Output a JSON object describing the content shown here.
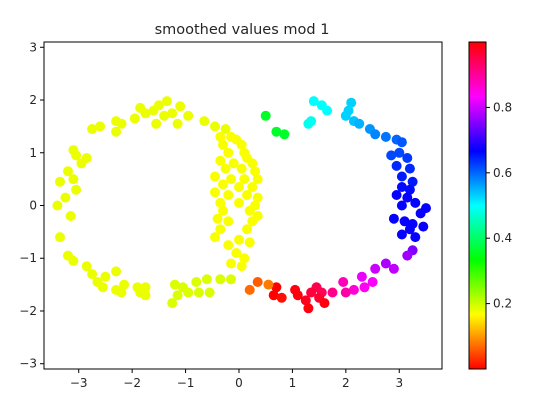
{
  "chart_data": {
    "type": "scatter",
    "title": "smoothed values mod 1",
    "xlabel": "",
    "ylabel": "",
    "xlim": [
      -3.65,
      3.8
    ],
    "ylim": [
      -3.1,
      3.1
    ],
    "xticks": [
      -3,
      -2,
      -1,
      0,
      1,
      2,
      3
    ],
    "yticks": [
      -3,
      -2,
      -1,
      0,
      1,
      2,
      3
    ],
    "grid": false,
    "colormap": "hsv",
    "colorbar": {
      "range": [
        0.0,
        1.0
      ],
      "ticks": [
        0.2,
        0.4,
        0.6,
        0.8
      ],
      "tick_labels": [
        "0.2",
        "0.4",
        "0.6",
        "0.8"
      ]
    },
    "points": [
      {
        "x": -1.35,
        "y": 1.98,
        "v": 0.18
      },
      {
        "x": -1.5,
        "y": 1.9,
        "v": 0.18
      },
      {
        "x": -1.1,
        "y": 1.88,
        "v": 0.18
      },
      {
        "x": -1.6,
        "y": 1.8,
        "v": 0.18
      },
      {
        "x": -1.85,
        "y": 1.85,
        "v": 0.18
      },
      {
        "x": -1.75,
        "y": 1.75,
        "v": 0.18
      },
      {
        "x": -1.25,
        "y": 1.75,
        "v": 0.18
      },
      {
        "x": -1.4,
        "y": 1.7,
        "v": 0.18
      },
      {
        "x": -0.95,
        "y": 1.7,
        "v": 0.18
      },
      {
        "x": -1.95,
        "y": 1.65,
        "v": 0.18
      },
      {
        "x": -2.3,
        "y": 1.6,
        "v": 0.18
      },
      {
        "x": -2.2,
        "y": 1.55,
        "v": 0.18
      },
      {
        "x": -1.55,
        "y": 1.55,
        "v": 0.18
      },
      {
        "x": -1.15,
        "y": 1.55,
        "v": 0.18
      },
      {
        "x": -0.65,
        "y": 1.6,
        "v": 0.18
      },
      {
        "x": -2.6,
        "y": 1.5,
        "v": 0.18
      },
      {
        "x": -2.75,
        "y": 1.45,
        "v": 0.18
      },
      {
        "x": -0.45,
        "y": 1.5,
        "v": 0.18
      },
      {
        "x": -2.3,
        "y": 1.4,
        "v": 0.18
      },
      {
        "x": -0.25,
        "y": 1.45,
        "v": 0.18
      },
      {
        "x": -3.1,
        "y": 1.05,
        "v": 0.18
      },
      {
        "x": -3.05,
        "y": 0.95,
        "v": 0.18
      },
      {
        "x": -2.85,
        "y": 0.9,
        "v": 0.18
      },
      {
        "x": -2.95,
        "y": 0.8,
        "v": 0.18
      },
      {
        "x": -3.2,
        "y": 0.65,
        "v": 0.18
      },
      {
        "x": -3.35,
        "y": 0.45,
        "v": 0.18
      },
      {
        "x": -3.1,
        "y": 0.5,
        "v": 0.18
      },
      {
        "x": -3.05,
        "y": 0.3,
        "v": 0.18
      },
      {
        "x": -3.25,
        "y": 0.15,
        "v": 0.18
      },
      {
        "x": -3.4,
        "y": 0.0,
        "v": 0.18
      },
      {
        "x": -3.15,
        "y": -0.2,
        "v": 0.18
      },
      {
        "x": -3.35,
        "y": -0.6,
        "v": 0.18
      },
      {
        "x": -3.2,
        "y": -0.95,
        "v": 0.18
      },
      {
        "x": -3.1,
        "y": -1.05,
        "v": 0.18
      },
      {
        "x": -2.85,
        "y": -1.15,
        "v": 0.18
      },
      {
        "x": -2.75,
        "y": -1.3,
        "v": 0.18
      },
      {
        "x": -2.65,
        "y": -1.45,
        "v": 0.18
      },
      {
        "x": -2.5,
        "y": -1.35,
        "v": 0.18
      },
      {
        "x": -2.3,
        "y": -1.25,
        "v": 0.18
      },
      {
        "x": -2.55,
        "y": -1.55,
        "v": 0.18
      },
      {
        "x": -2.3,
        "y": -1.6,
        "v": 0.18
      },
      {
        "x": -2.15,
        "y": -1.5,
        "v": 0.18
      },
      {
        "x": -2.2,
        "y": -1.65,
        "v": 0.18
      },
      {
        "x": -1.9,
        "y": -1.55,
        "v": 0.18
      },
      {
        "x": -1.85,
        "y": -1.65,
        "v": 0.18
      },
      {
        "x": -1.75,
        "y": -1.7,
        "v": 0.18
      },
      {
        "x": -1.75,
        "y": -1.55,
        "v": 0.18
      },
      {
        "x": -1.2,
        "y": -1.5,
        "v": 0.19
      },
      {
        "x": -1.05,
        "y": -1.55,
        "v": 0.19
      },
      {
        "x": -0.8,
        "y": -1.45,
        "v": 0.19
      },
      {
        "x": -0.6,
        "y": -1.4,
        "v": 0.19
      },
      {
        "x": -0.35,
        "y": -1.4,
        "v": 0.19
      },
      {
        "x": -0.15,
        "y": -1.4,
        "v": 0.19
      },
      {
        "x": -0.95,
        "y": -1.65,
        "v": 0.19
      },
      {
        "x": -0.75,
        "y": -1.65,
        "v": 0.19
      },
      {
        "x": -0.55,
        "y": -1.65,
        "v": 0.19
      },
      {
        "x": -1.15,
        "y": -1.7,
        "v": 0.19
      },
      {
        "x": -1.25,
        "y": -1.85,
        "v": 0.19
      },
      {
        "x": -0.35,
        "y": 1.3,
        "v": 0.17
      },
      {
        "x": -0.15,
        "y": 1.3,
        "v": 0.17
      },
      {
        "x": -0.05,
        "y": 1.25,
        "v": 0.17
      },
      {
        "x": -0.3,
        "y": 1.15,
        "v": 0.17
      },
      {
        "x": 0.05,
        "y": 1.15,
        "v": 0.17
      },
      {
        "x": -0.2,
        "y": 1.0,
        "v": 0.17
      },
      {
        "x": 0.1,
        "y": 1.0,
        "v": 0.17
      },
      {
        "x": 0.15,
        "y": 0.9,
        "v": 0.17
      },
      {
        "x": -0.35,
        "y": 0.85,
        "v": 0.17
      },
      {
        "x": -0.1,
        "y": 0.8,
        "v": 0.17
      },
      {
        "x": 0.25,
        "y": 0.8,
        "v": 0.17
      },
      {
        "x": -0.25,
        "y": 0.7,
        "v": 0.17
      },
      {
        "x": 0.05,
        "y": 0.7,
        "v": 0.17
      },
      {
        "x": 0.3,
        "y": 0.65,
        "v": 0.17
      },
      {
        "x": -0.45,
        "y": 0.55,
        "v": 0.17
      },
      {
        "x": -0.15,
        "y": 0.5,
        "v": 0.17
      },
      {
        "x": 0.1,
        "y": 0.5,
        "v": 0.17
      },
      {
        "x": 0.35,
        "y": 0.5,
        "v": 0.17
      },
      {
        "x": -0.3,
        "y": 0.4,
        "v": 0.17
      },
      {
        "x": 0.0,
        "y": 0.35,
        "v": 0.17
      },
      {
        "x": 0.25,
        "y": 0.35,
        "v": 0.17
      },
      {
        "x": -0.45,
        "y": 0.25,
        "v": 0.17
      },
      {
        "x": -0.2,
        "y": 0.2,
        "v": 0.17
      },
      {
        "x": 0.15,
        "y": 0.2,
        "v": 0.17
      },
      {
        "x": 0.35,
        "y": 0.15,
        "v": 0.17
      },
      {
        "x": -0.35,
        "y": 0.05,
        "v": 0.17
      },
      {
        "x": 0.0,
        "y": 0.05,
        "v": 0.17
      },
      {
        "x": 0.3,
        "y": 0.0,
        "v": 0.17
      },
      {
        "x": -0.3,
        "y": -0.1,
        "v": 0.17
      },
      {
        "x": 0.2,
        "y": -0.1,
        "v": 0.17
      },
      {
        "x": -0.4,
        "y": -0.25,
        "v": 0.17
      },
      {
        "x": 0.35,
        "y": -0.2,
        "v": 0.17
      },
      {
        "x": -0.2,
        "y": -0.3,
        "v": 0.17
      },
      {
        "x": 0.25,
        "y": -0.3,
        "v": 0.17
      },
      {
        "x": -0.35,
        "y": -0.45,
        "v": 0.17
      },
      {
        "x": 0.15,
        "y": -0.45,
        "v": 0.17
      },
      {
        "x": -0.45,
        "y": -0.6,
        "v": 0.17
      },
      {
        "x": 0.0,
        "y": -0.65,
        "v": 0.17
      },
      {
        "x": -0.2,
        "y": -0.75,
        "v": 0.17
      },
      {
        "x": 0.2,
        "y": -0.7,
        "v": 0.17
      },
      {
        "x": -0.05,
        "y": -0.9,
        "v": 0.17
      },
      {
        "x": 0.1,
        "y": -1.0,
        "v": 0.17
      },
      {
        "x": -0.15,
        "y": -1.1,
        "v": 0.17
      },
      {
        "x": 0.05,
        "y": -1.15,
        "v": 0.17
      },
      {
        "x": 0.5,
        "y": 1.7,
        "v": 0.36
      },
      {
        "x": 0.7,
        "y": 1.4,
        "v": 0.36
      },
      {
        "x": 0.85,
        "y": 1.35,
        "v": 0.36
      },
      {
        "x": 1.4,
        "y": 1.98,
        "v": 0.5
      },
      {
        "x": 1.55,
        "y": 1.9,
        "v": 0.5
      },
      {
        "x": 1.65,
        "y": 1.8,
        "v": 0.5
      },
      {
        "x": 1.35,
        "y": 1.6,
        "v": 0.49
      },
      {
        "x": 1.3,
        "y": 1.55,
        "v": 0.49
      },
      {
        "x": 2.1,
        "y": 1.95,
        "v": 0.53
      },
      {
        "x": 2.05,
        "y": 1.8,
        "v": 0.53
      },
      {
        "x": 2.0,
        "y": 1.7,
        "v": 0.53
      },
      {
        "x": 2.15,
        "y": 1.6,
        "v": 0.54
      },
      {
        "x": 2.25,
        "y": 1.55,
        "v": 0.55
      },
      {
        "x": 2.45,
        "y": 1.45,
        "v": 0.57
      },
      {
        "x": 2.55,
        "y": 1.35,
        "v": 0.58
      },
      {
        "x": 2.75,
        "y": 1.3,
        "v": 0.59
      },
      {
        "x": 2.95,
        "y": 1.25,
        "v": 0.6
      },
      {
        "x": 3.05,
        "y": 1.2,
        "v": 0.61
      },
      {
        "x": 3.0,
        "y": 1.0,
        "v": 0.62
      },
      {
        "x": 2.85,
        "y": 0.95,
        "v": 0.62
      },
      {
        "x": 3.15,
        "y": 0.9,
        "v": 0.63
      },
      {
        "x": 2.95,
        "y": 0.75,
        "v": 0.64
      },
      {
        "x": 3.2,
        "y": 0.7,
        "v": 0.64
      },
      {
        "x": 3.05,
        "y": 0.55,
        "v": 0.65
      },
      {
        "x": 3.25,
        "y": 0.45,
        "v": 0.65
      },
      {
        "x": 3.05,
        "y": 0.35,
        "v": 0.66
      },
      {
        "x": 3.2,
        "y": 0.3,
        "v": 0.66
      },
      {
        "x": 2.95,
        "y": 0.2,
        "v": 0.67
      },
      {
        "x": 3.15,
        "y": 0.15,
        "v": 0.67
      },
      {
        "x": 3.3,
        "y": 0.05,
        "v": 0.67
      },
      {
        "x": 3.05,
        "y": 0.0,
        "v": 0.67
      },
      {
        "x": 3.5,
        "y": -0.05,
        "v": 0.67
      },
      {
        "x": 3.4,
        "y": -0.15,
        "v": 0.67
      },
      {
        "x": 2.9,
        "y": -0.25,
        "v": 0.67
      },
      {
        "x": 3.1,
        "y": -0.3,
        "v": 0.67
      },
      {
        "x": 3.25,
        "y": -0.35,
        "v": 0.67
      },
      {
        "x": 3.45,
        "y": -0.4,
        "v": 0.67
      },
      {
        "x": 3.2,
        "y": -0.45,
        "v": 0.67
      },
      {
        "x": 3.05,
        "y": -0.55,
        "v": 0.67
      },
      {
        "x": 3.3,
        "y": -0.6,
        "v": 0.67
      },
      {
        "x": 3.25,
        "y": -0.85,
        "v": 0.75
      },
      {
        "x": 3.15,
        "y": -0.95,
        "v": 0.77
      },
      {
        "x": 2.75,
        "y": -1.1,
        "v": 0.78
      },
      {
        "x": 2.55,
        "y": -1.2,
        "v": 0.8
      },
      {
        "x": 2.9,
        "y": -1.2,
        "v": 0.79
      },
      {
        "x": 2.3,
        "y": -1.35,
        "v": 0.82
      },
      {
        "x": 2.5,
        "y": -1.45,
        "v": 0.83
      },
      {
        "x": 2.35,
        "y": -1.55,
        "v": 0.84
      },
      {
        "x": 2.15,
        "y": -1.6,
        "v": 0.86
      },
      {
        "x": 1.95,
        "y": -1.45,
        "v": 0.88
      },
      {
        "x": 2.0,
        "y": -1.65,
        "v": 0.89
      },
      {
        "x": 1.75,
        "y": -1.65,
        "v": 0.91
      },
      {
        "x": 1.55,
        "y": -1.65,
        "v": 0.94
      },
      {
        "x": 1.45,
        "y": -1.55,
        "v": 0.95
      },
      {
        "x": 1.35,
        "y": -1.65,
        "v": 0.96
      },
      {
        "x": 1.5,
        "y": -1.75,
        "v": 0.97
      },
      {
        "x": 1.25,
        "y": -1.8,
        "v": 0.98
      },
      {
        "x": 1.1,
        "y": -1.7,
        "v": 0.99
      },
      {
        "x": 1.05,
        "y": -1.6,
        "v": 0.99
      },
      {
        "x": 1.3,
        "y": -1.95,
        "v": 0.99
      },
      {
        "x": 1.6,
        "y": -1.85,
        "v": 0.99
      },
      {
        "x": 0.7,
        "y": -1.55,
        "v": 0.0
      },
      {
        "x": 0.65,
        "y": -1.7,
        "v": 0.0
      },
      {
        "x": 0.8,
        "y": -1.75,
        "v": 0.01
      },
      {
        "x": 0.35,
        "y": -1.45,
        "v": 0.06
      },
      {
        "x": 0.2,
        "y": -1.6,
        "v": 0.07
      },
      {
        "x": 0.55,
        "y": -1.5,
        "v": 0.08
      }
    ]
  }
}
